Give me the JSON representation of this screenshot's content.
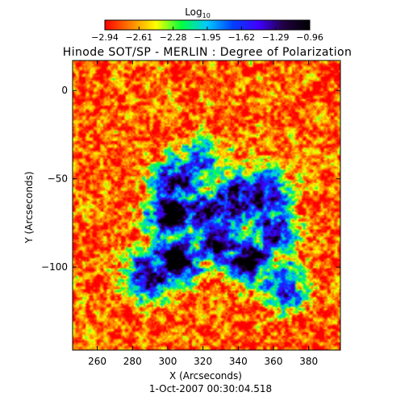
{
  "chart_data": {
    "type": "heatmap",
    "title": "Hinode SOT/SP - MERLIN : Degree of Polarization",
    "subtitle": "1-Oct-2007 00:30:04.518",
    "xlabel": "X (Arcseconds)",
    "ylabel": "Y (Arcseconds)",
    "xlim": [
      246,
      398
    ],
    "ylim": [
      -147,
      17
    ],
    "x_ticks": [
      260,
      280,
      300,
      320,
      340,
      360,
      380
    ],
    "y_ticks": [
      0,
      -50,
      -100
    ],
    "colorbar": {
      "label_base": "Log",
      "label_subscript": "10",
      "range": [
        -2.94,
        -0.96
      ],
      "ticks": [
        "-2.94",
        "-2.61",
        "-2.28",
        "-1.95",
        "-1.62",
        "-1.29",
        "-0.96"
      ],
      "colormap": [
        "#ff0000",
        "#ff8000",
        "#ffff00",
        "#00ff40",
        "#00c8ff",
        "#0040ff",
        "#4000ff",
        "#200040",
        "#000000"
      ]
    },
    "background_level": -2.75,
    "regions": [
      {
        "x": 305,
        "y": -52,
        "level": -1.2
      },
      {
        "x": 303,
        "y": -70,
        "level": -0.98
      },
      {
        "x": 322,
        "y": -70,
        "level": -1.1
      },
      {
        "x": 340,
        "y": -62,
        "level": -0.97
      },
      {
        "x": 355,
        "y": -60,
        "level": -1.3
      },
      {
        "x": 330,
        "y": -85,
        "level": -1.15
      },
      {
        "x": 305,
        "y": -95,
        "level": -0.97
      },
      {
        "x": 345,
        "y": -95,
        "level": -1.1
      },
      {
        "x": 290,
        "y": -105,
        "level": -1.2
      },
      {
        "x": 360,
        "y": -80,
        "level": -1.4
      },
      {
        "x": 320,
        "y": -40,
        "level": -1.8
      },
      {
        "x": 365,
        "y": -110,
        "level": -1.6
      }
    ]
  }
}
